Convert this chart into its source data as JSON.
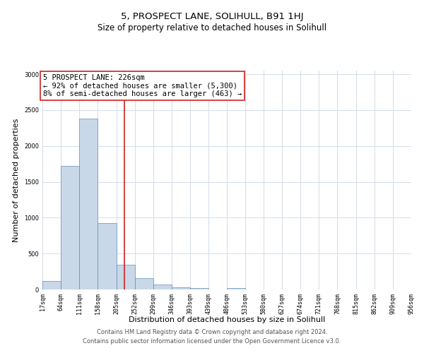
{
  "title": "5, PROSPECT LANE, SOLIHULL, B91 1HJ",
  "subtitle": "Size of property relative to detached houses in Solihull",
  "xlabel": "Distribution of detached houses by size in Solihull",
  "ylabel": "Number of detached properties",
  "bin_edges": [
    17,
    64,
    111,
    158,
    205,
    252,
    299,
    346,
    393,
    439,
    486,
    533,
    580,
    627,
    674,
    721,
    768,
    815,
    862,
    909,
    956
  ],
  "bin_labels": [
    "17sqm",
    "64sqm",
    "111sqm",
    "158sqm",
    "205sqm",
    "252sqm",
    "299sqm",
    "346sqm",
    "393sqm",
    "439sqm",
    "486sqm",
    "533sqm",
    "580sqm",
    "627sqm",
    "674sqm",
    "721sqm",
    "768sqm",
    "815sqm",
    "862sqm",
    "909sqm",
    "956sqm"
  ],
  "counts": [
    120,
    1720,
    2380,
    920,
    345,
    155,
    70,
    30,
    15,
    0,
    15,
    0,
    0,
    0,
    0,
    0,
    0,
    0,
    0,
    0
  ],
  "bar_color": "#c8d8e8",
  "bar_edge_color": "#6090b0",
  "vline_x": 226,
  "vline_color": "#cc2222",
  "annotation_line1": "5 PROSPECT LANE: 226sqm",
  "annotation_line2": "← 92% of detached houses are smaller (5,300)",
  "annotation_line3": "8% of semi-detached houses are larger (463) →",
  "annotation_box_color": "#ffffff",
  "annotation_box_edge_color": "#cc2222",
  "ylim": [
    0,
    3050
  ],
  "yticks": [
    0,
    500,
    1000,
    1500,
    2000,
    2500,
    3000
  ],
  "footer_line1": "Contains HM Land Registry data © Crown copyright and database right 2024.",
  "footer_line2": "Contains public sector information licensed under the Open Government Licence v3.0.",
  "background_color": "#ffffff",
  "grid_color": "#d4dce8",
  "title_fontsize": 9.5,
  "subtitle_fontsize": 8.5,
  "axis_label_fontsize": 8,
  "tick_fontsize": 6,
  "annotation_fontsize": 7.5,
  "footer_fontsize": 6
}
